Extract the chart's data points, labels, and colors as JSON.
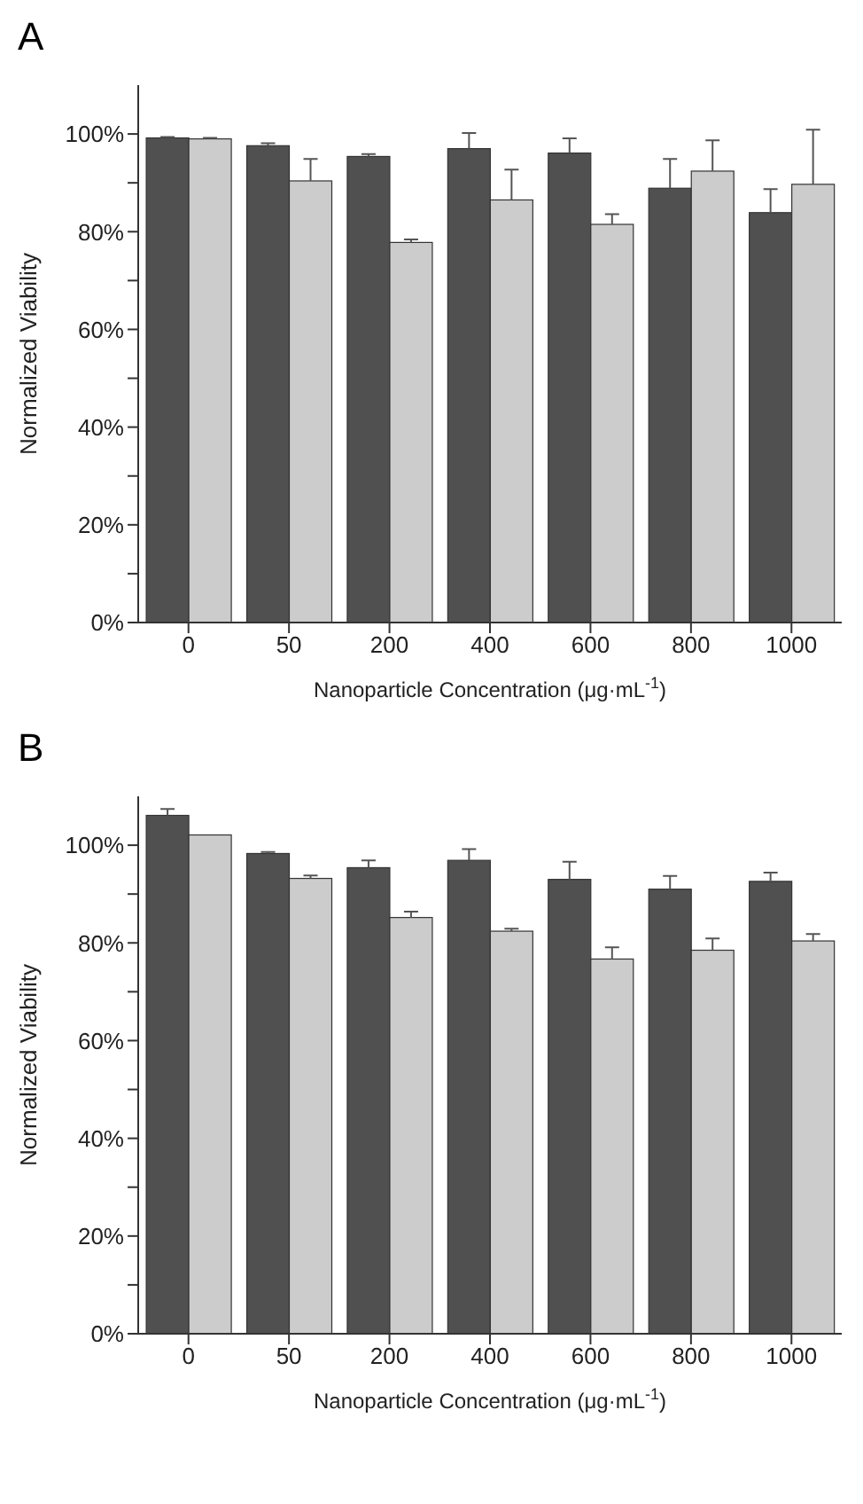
{
  "chart_data": [
    {
      "type": "bar",
      "title": "A",
      "xlabel": "Nanoparticle Concentration (μg·mL$^{-1}$)",
      "ylabel": "Normalized Viability",
      "categories": [
        "0",
        "50",
        "200",
        "400",
        "600",
        "800",
        "1000"
      ],
      "series": [
        {
          "color": "#505050",
          "values": [
            99.2,
            97.6,
            95.4,
            97.0,
            96.1,
            88.9,
            83.9
          ],
          "errors": [
            [
              99.2,
              99.4
            ],
            [
              97.6,
              98.1
            ],
            [
              95.4,
              95.9
            ],
            [
              97.0,
              100.2
            ],
            [
              96.1,
              99.1
            ],
            [
              88.9,
              94.9
            ],
            [
              83.9,
              88.7
            ]
          ]
        },
        {
          "color": "#cccccc",
          "values": [
            99.0,
            90.4,
            77.8,
            86.5,
            81.5,
            92.4,
            89.7
          ],
          "errors": [
            [
              99.0,
              99.2
            ],
            [
              90.4,
              94.9
            ],
            [
              77.8,
              78.4
            ],
            [
              86.5,
              92.7
            ],
            [
              81.5,
              83.6
            ],
            [
              92.4,
              98.7
            ],
            [
              89.7,
              100.9
            ]
          ]
        }
      ],
      "ylim": [
        0,
        110
      ],
      "yticks": [
        {
          "value": 0,
          "label": "0%"
        },
        {
          "value": 10,
          "label": null
        },
        {
          "value": 20,
          "label": "20%"
        },
        {
          "value": 30,
          "label": null
        },
        {
          "value": 40,
          "label": "40%"
        },
        {
          "value": 50,
          "label": null
        },
        {
          "value": 60,
          "label": "60%"
        },
        {
          "value": 70,
          "label": null
        },
        {
          "value": 80,
          "label": "80%"
        },
        {
          "value": 90,
          "label": null
        },
        {
          "value": 100,
          "label": "100%"
        }
      ],
      "grid": false,
      "legend": false
    },
    {
      "type": "bar",
      "title": "B",
      "xlabel": "Nanoparticle Concentration (μg·mL$^{-1}$)",
      "ylabel": "Normalized Viability",
      "categories": [
        "0",
        "50",
        "200",
        "400",
        "600",
        "800",
        "1000"
      ],
      "series": [
        {
          "color": "#505050",
          "values": [
            106.1,
            98.3,
            95.4,
            96.9,
            93.0,
            91.0,
            92.6
          ],
          "errors": [
            [
              106.1,
              107.4
            ],
            [
              98.3,
              98.6
            ],
            [
              95.4,
              96.9
            ],
            [
              96.9,
              99.2
            ],
            [
              93.0,
              96.6
            ],
            [
              91.0,
              93.7
            ],
            [
              92.6,
              94.4
            ]
          ]
        },
        {
          "color": "#cccccc",
          "values": [
            102.1,
            93.2,
            85.2,
            82.4,
            76.7,
            78.5,
            80.4
          ],
          "errors": [
            null,
            [
              93.2,
              93.8
            ],
            [
              85.2,
              86.4
            ],
            [
              82.4,
              82.9
            ],
            [
              76.7,
              79.1
            ],
            [
              78.5,
              80.9
            ],
            [
              80.4,
              81.8
            ]
          ]
        }
      ],
      "ylim": [
        0,
        110
      ],
      "yticks": [
        {
          "value": 0,
          "label": "0%"
        },
        {
          "value": 10,
          "label": null
        },
        {
          "value": 20,
          "label": "20%"
        },
        {
          "value": 30,
          "label": null
        },
        {
          "value": 40,
          "label": "40%"
        },
        {
          "value": 50,
          "label": null
        },
        {
          "value": 60,
          "label": "60%"
        },
        {
          "value": 70,
          "label": null
        },
        {
          "value": 80,
          "label": "80%"
        },
        {
          "value": 90,
          "label": null
        },
        {
          "value": 100,
          "label": "100%"
        }
      ],
      "grid": false,
      "legend": false
    }
  ]
}
